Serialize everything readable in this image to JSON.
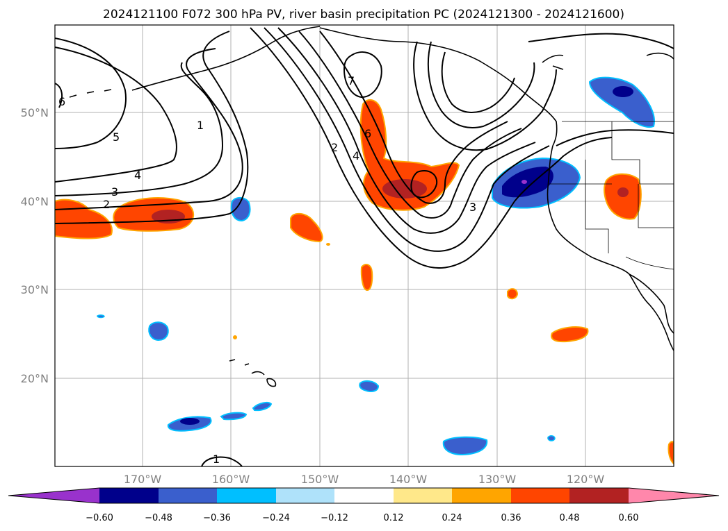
{
  "title": "2024121100 F072 300 hPa PV, river basin precipitation PC (2024121300 - 2024121600)",
  "lat_labels": [
    "50°N",
    "40°N",
    "30°N",
    "20°N"
  ],
  "lon_labels": [
    "170°W",
    "160°W",
    "150°W",
    "140°W",
    "130°W",
    "120°W"
  ],
  "colorbar": {
    "ticks": [
      "−0.60",
      "−0.48",
      "−0.36",
      "−0.24",
      "−0.12",
      "0.12",
      "0.24",
      "0.36",
      "0.48",
      "0.60"
    ],
    "colors": [
      "#9932cc",
      "#00008b",
      "#3a5fcd",
      "#00bfff",
      "#afe2fa",
      "#ffffff",
      "#ffe88a",
      "#ffa500",
      "#ff4500",
      "#b22222",
      "#ff87ab"
    ]
  },
  "contour_labels": [
    "6",
    "5",
    "4",
    "3",
    "2",
    "1",
    "7",
    "6",
    "4",
    "2",
    "3",
    "1"
  ]
}
